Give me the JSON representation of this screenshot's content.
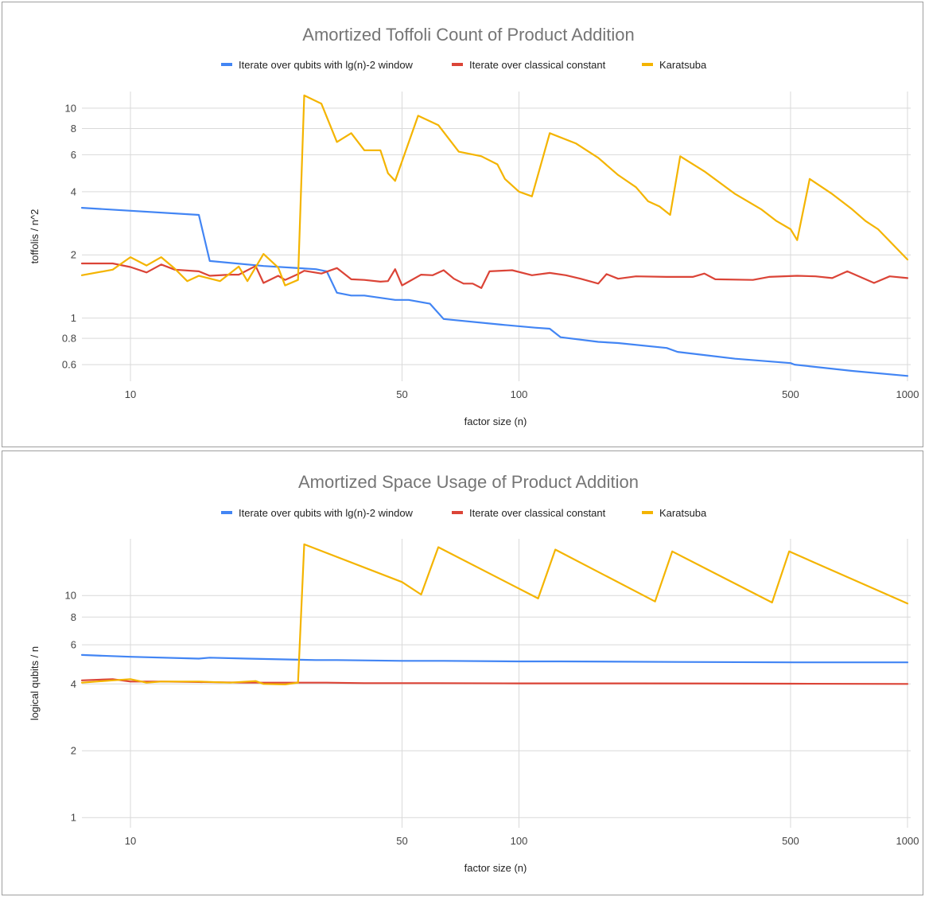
{
  "chart_data": [
    {
      "type": "line",
      "title": "Amortized Toffoli Count of Product Addition",
      "xlabel": "factor size (n)",
      "ylabel": "toffolis / n^2",
      "xscale": "log",
      "yscale": "log",
      "xlim": [
        7.5,
        1000
      ],
      "ylim": [
        0.5,
        12
      ],
      "grid": true,
      "legend_position": "top",
      "x_ticks": [
        10,
        50,
        100,
        500,
        1000
      ],
      "y_ticks": [
        0.6,
        0.8,
        1,
        2,
        4,
        6,
        8,
        10
      ],
      "x_tick_labels": [
        "10",
        "50",
        "100",
        "500",
        "1000"
      ],
      "y_tick_labels": [
        "0.6",
        "0.8",
        "1",
        "2",
        "4",
        "6",
        "8",
        "10"
      ],
      "series": [
        {
          "name": "Iterate over qubits with lg(n)-2 window",
          "color": "#4285f4",
          "points": [
            [
              7.5,
              3.35
            ],
            [
              15,
              3.1
            ],
            [
              16,
              1.87
            ],
            [
              22,
              1.77
            ],
            [
              30,
              1.71
            ],
            [
              32,
              1.67
            ],
            [
              34,
              1.32
            ],
            [
              37,
              1.28
            ],
            [
              40,
              1.28
            ],
            [
              48,
              1.22
            ],
            [
              52,
              1.22
            ],
            [
              59,
              1.17
            ],
            [
              64,
              0.99
            ],
            [
              90,
              0.93
            ],
            [
              110,
              0.9
            ],
            [
              120,
              0.89
            ],
            [
              128,
              0.81
            ],
            [
              160,
              0.77
            ],
            [
              180,
              0.76
            ],
            [
              240,
              0.72
            ],
            [
              256,
              0.69
            ],
            [
              360,
              0.64
            ],
            [
              500,
              0.61
            ],
            [
              512,
              0.6
            ],
            [
              720,
              0.56
            ],
            [
              1000,
              0.53
            ]
          ]
        },
        {
          "name": "Iterate over classical constant",
          "color": "#db4437",
          "points": [
            [
              7.5,
              1.82
            ],
            [
              9,
              1.82
            ],
            [
              10,
              1.75
            ],
            [
              11,
              1.65
            ],
            [
              12,
              1.8
            ],
            [
              13,
              1.7
            ],
            [
              15,
              1.67
            ],
            [
              16,
              1.59
            ],
            [
              18,
              1.61
            ],
            [
              19,
              1.61
            ],
            [
              21,
              1.77
            ],
            [
              22,
              1.47
            ],
            [
              24,
              1.59
            ],
            [
              25,
              1.52
            ],
            [
              27,
              1.62
            ],
            [
              28,
              1.68
            ],
            [
              31,
              1.63
            ],
            [
              34,
              1.73
            ],
            [
              37,
              1.53
            ],
            [
              40,
              1.52
            ],
            [
              44,
              1.49
            ],
            [
              46,
              1.5
            ],
            [
              48,
              1.71
            ],
            [
              50,
              1.43
            ],
            [
              56,
              1.61
            ],
            [
              60,
              1.6
            ],
            [
              64,
              1.69
            ],
            [
              68,
              1.54
            ],
            [
              72,
              1.46
            ],
            [
              76,
              1.46
            ],
            [
              80,
              1.39
            ],
            [
              84,
              1.67
            ],
            [
              96,
              1.69
            ],
            [
              108,
              1.6
            ],
            [
              120,
              1.64
            ],
            [
              132,
              1.6
            ],
            [
              144,
              1.54
            ],
            [
              160,
              1.46
            ],
            [
              168,
              1.62
            ],
            [
              180,
              1.54
            ],
            [
              200,
              1.58
            ],
            [
              240,
              1.57
            ],
            [
              280,
              1.57
            ],
            [
              300,
              1.63
            ],
            [
              320,
              1.53
            ],
            [
              400,
              1.52
            ],
            [
              440,
              1.57
            ],
            [
              520,
              1.59
            ],
            [
              580,
              1.58
            ],
            [
              640,
              1.55
            ],
            [
              700,
              1.67
            ],
            [
              780,
              1.53
            ],
            [
              820,
              1.47
            ],
            [
              900,
              1.58
            ],
            [
              1000,
              1.55
            ]
          ]
        },
        {
          "name": "Karatsuba",
          "color": "#f4b400",
          "points": [
            [
              7.5,
              1.6
            ],
            [
              9,
              1.7
            ],
            [
              10,
              1.95
            ],
            [
              11,
              1.78
            ],
            [
              12,
              1.95
            ],
            [
              13,
              1.72
            ],
            [
              14,
              1.5
            ],
            [
              15,
              1.59
            ],
            [
              17,
              1.5
            ],
            [
              19,
              1.76
            ],
            [
              20,
              1.5
            ],
            [
              22,
              2.02
            ],
            [
              24,
              1.74
            ],
            [
              25,
              1.43
            ],
            [
              27,
              1.52
            ],
            [
              28,
              11.5
            ],
            [
              31,
              10.5
            ],
            [
              34,
              6.9
            ],
            [
              37,
              7.6
            ],
            [
              40,
              6.3
            ],
            [
              44,
              6.3
            ],
            [
              46,
              4.9
            ],
            [
              48,
              4.5
            ],
            [
              55,
              9.2
            ],
            [
              62,
              8.3
            ],
            [
              70,
              6.2
            ],
            [
              80,
              5.9
            ],
            [
              88,
              5.4
            ],
            [
              92,
              4.6
            ],
            [
              100,
              4.0
            ],
            [
              108,
              3.8
            ],
            [
              120,
              7.6
            ],
            [
              140,
              6.8
            ],
            [
              160,
              5.8
            ],
            [
              180,
              4.8
            ],
            [
              200,
              4.2
            ],
            [
              215,
              3.6
            ],
            [
              230,
              3.4
            ],
            [
              245,
              3.1
            ],
            [
              260,
              5.9
            ],
            [
              300,
              5.0
            ],
            [
              360,
              3.9
            ],
            [
              420,
              3.3
            ],
            [
              460,
              2.9
            ],
            [
              500,
              2.65
            ],
            [
              520,
              2.35
            ],
            [
              560,
              4.6
            ],
            [
              640,
              3.9
            ],
            [
              720,
              3.3
            ],
            [
              780,
              2.9
            ],
            [
              840,
              2.65
            ],
            [
              1000,
              1.9
            ]
          ]
        }
      ]
    },
    {
      "type": "line",
      "title": "Amortized Space Usage of Product Addition",
      "xlabel": "factor size (n)",
      "ylabel": "logical qubits / n",
      "xscale": "log",
      "yscale": "log",
      "xlim": [
        7.5,
        1000
      ],
      "ylim": [
        0.9,
        18
      ],
      "grid": true,
      "legend_position": "top",
      "x_ticks": [
        10,
        50,
        100,
        500,
        1000
      ],
      "y_ticks": [
        1,
        2,
        4,
        6,
        8,
        10
      ],
      "x_tick_labels": [
        "10",
        "50",
        "100",
        "500",
        "1000"
      ],
      "y_tick_labels": [
        "1",
        "2",
        "4",
        "6",
        "8",
        "10"
      ],
      "series": [
        {
          "name": "Iterate over qubits with lg(n)-2 window",
          "color": "#4285f4",
          "points": [
            [
              7.5,
              5.4
            ],
            [
              10,
              5.3
            ],
            [
              15,
              5.2
            ],
            [
              16,
              5.25
            ],
            [
              20,
              5.2
            ],
            [
              30,
              5.12
            ],
            [
              34,
              5.12
            ],
            [
              50,
              5.08
            ],
            [
              64,
              5.08
            ],
            [
              100,
              5.05
            ],
            [
              128,
              5.05
            ],
            [
              256,
              5.02
            ],
            [
              512,
              5.0
            ],
            [
              1000,
              5.0
            ]
          ]
        },
        {
          "name": "Iterate over classical constant",
          "color": "#db4437",
          "points": [
            [
              7.5,
              4.15
            ],
            [
              9,
              4.2
            ],
            [
              10,
              4.1
            ],
            [
              12,
              4.1
            ],
            [
              15,
              4.08
            ],
            [
              20,
              4.05
            ],
            [
              25,
              4.05
            ],
            [
              28,
              4.05
            ],
            [
              32,
              4.05
            ],
            [
              40,
              4.03
            ],
            [
              60,
              4.03
            ],
            [
              100,
              4.02
            ],
            [
              200,
              4.02
            ],
            [
              500,
              4.01
            ],
            [
              1000,
              4.0
            ]
          ]
        },
        {
          "name": "Karatsuba",
          "color": "#f4b400",
          "points": [
            [
              7.5,
              4.05
            ],
            [
              9,
              4.15
            ],
            [
              10,
              4.2
            ],
            [
              11,
              4.05
            ],
            [
              12,
              4.1
            ],
            [
              15,
              4.1
            ],
            [
              18,
              4.05
            ],
            [
              21,
              4.12
            ],
            [
              22,
              4.0
            ],
            [
              25,
              3.98
            ],
            [
              27,
              4.05
            ],
            [
              28,
              17.0
            ],
            [
              50,
              11.5
            ],
            [
              56,
              10.1
            ],
            [
              62,
              16.5
            ],
            [
              112,
              9.7
            ],
            [
              124,
              16.1
            ],
            [
              224,
              9.4
            ],
            [
              248,
              15.8
            ],
            [
              448,
              9.3
            ],
            [
              496,
              15.8
            ],
            [
              1000,
              9.2
            ]
          ]
        }
      ]
    }
  ]
}
